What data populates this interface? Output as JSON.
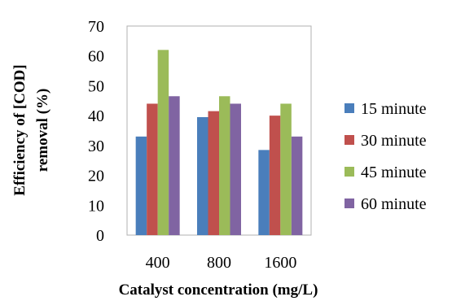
{
  "chart_data": {
    "type": "bar",
    "xlabel": "Catalyst concentration (mg/L)",
    "ylabel_lines": [
      "Efficiency of [COD]",
      "removal (%)"
    ],
    "ylim": [
      0,
      70
    ],
    "yticks": [
      0,
      10,
      20,
      30,
      40,
      50,
      60,
      70
    ],
    "categories": [
      "400",
      "800",
      "1600"
    ],
    "grid": false,
    "legend_position": "right",
    "series": [
      {
        "name": "15 minute",
        "color": "#4a7ebb",
        "values": [
          33,
          39.5,
          28.5
        ]
      },
      {
        "name": "30 minute",
        "color": "#c0504d",
        "values": [
          44,
          41.5,
          40
        ]
      },
      {
        "name": "45 minute",
        "color": "#9bbb59",
        "values": [
          62,
          46.5,
          44
        ]
      },
      {
        "name": "60 minute",
        "color": "#8064a2",
        "values": [
          46.5,
          44,
          33
        ]
      }
    ]
  }
}
